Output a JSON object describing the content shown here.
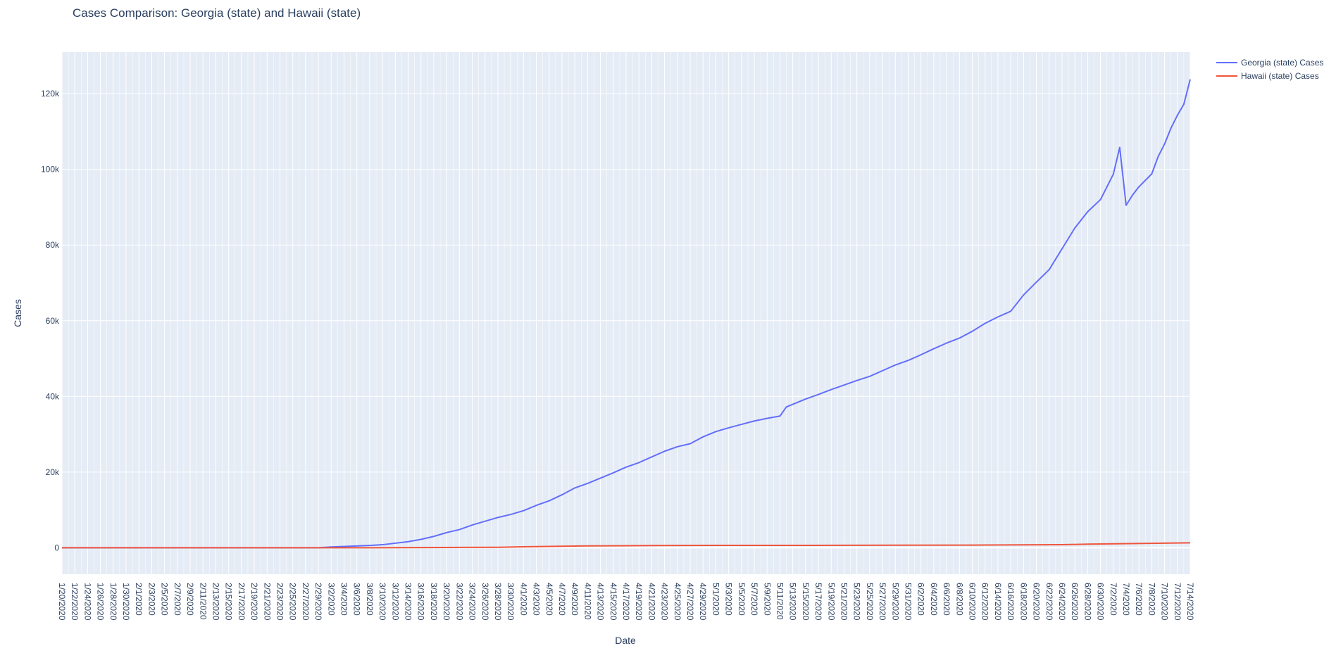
{
  "chart_data": {
    "type": "line",
    "title": "Cases Comparison: Georgia (state) and Hawaii (state)",
    "xlabel": "Date",
    "ylabel": "Cases",
    "x_range": [
      "1/20/2020",
      "7/14/2020"
    ],
    "ylim": [
      -7000,
      131000
    ],
    "y_ticks": [
      0,
      20000,
      40000,
      60000,
      80000,
      100000,
      120000
    ],
    "y_tick_labels": [
      "0",
      "20k",
      "40k",
      "60k",
      "80k",
      "100k",
      "120k"
    ],
    "x_tick_labels": [
      "1/20/2020",
      "1/22/2020",
      "1/24/2020",
      "1/26/2020",
      "1/28/2020",
      "1/30/2020",
      "2/1/2020",
      "2/3/2020",
      "2/5/2020",
      "2/7/2020",
      "2/9/2020",
      "2/11/2020",
      "2/13/2020",
      "2/15/2020",
      "2/17/2020",
      "2/19/2020",
      "2/21/2020",
      "2/23/2020",
      "2/25/2020",
      "2/27/2020",
      "2/29/2020",
      "3/2/2020",
      "3/4/2020",
      "3/6/2020",
      "3/8/2020",
      "3/10/2020",
      "3/12/2020",
      "3/14/2020",
      "3/16/2020",
      "3/18/2020",
      "3/20/2020",
      "3/22/2020",
      "3/24/2020",
      "3/26/2020",
      "3/28/2020",
      "3/30/2020",
      "4/1/2020",
      "4/3/2020",
      "4/5/2020",
      "4/7/2020",
      "4/9/2020",
      "4/11/2020",
      "4/13/2020",
      "4/15/2020",
      "4/17/2020",
      "4/19/2020",
      "4/21/2020",
      "4/23/2020",
      "4/25/2020",
      "4/27/2020",
      "4/29/2020",
      "5/1/2020",
      "5/3/2020",
      "5/5/2020",
      "5/7/2020",
      "5/9/2020",
      "5/11/2020",
      "5/13/2020",
      "5/15/2020",
      "5/17/2020",
      "5/19/2020",
      "5/21/2020",
      "5/23/2020",
      "5/25/2020",
      "5/27/2020",
      "5/29/2020",
      "5/31/2020",
      "6/2/2020",
      "6/4/2020",
      "6/6/2020",
      "6/8/2020",
      "6/10/2020",
      "6/12/2020",
      "6/14/2020",
      "6/16/2020",
      "6/18/2020",
      "6/20/2020",
      "6/22/2020",
      "6/24/2020",
      "6/26/2020",
      "6/28/2020",
      "6/30/2020",
      "7/2/2020",
      "7/4/2020",
      "7/6/2020",
      "7/8/2020",
      "7/10/2020",
      "7/12/2020",
      "7/14/2020"
    ],
    "grid": true,
    "legend_position": "top-right",
    "series": [
      {
        "name": "Georgia (state) Cases",
        "color": "#636efa",
        "points": [
          [
            "1/20/2020",
            0
          ],
          [
            "2/29/2020",
            0
          ],
          [
            "3/2/2020",
            200
          ],
          [
            "3/8/2020",
            600
          ],
          [
            "3/10/2020",
            800
          ],
          [
            "3/14/2020",
            1600
          ],
          [
            "3/16/2020",
            2200
          ],
          [
            "3/18/2020",
            3000
          ],
          [
            "3/20/2020",
            4000
          ],
          [
            "3/22/2020",
            4800
          ],
          [
            "3/24/2020",
            6000
          ],
          [
            "3/26/2020",
            7000
          ],
          [
            "3/28/2020",
            8000
          ],
          [
            "3/30/2020",
            8800
          ],
          [
            "4/1/2020",
            9800
          ],
          [
            "4/3/2020",
            11200
          ],
          [
            "4/5/2020",
            12400
          ],
          [
            "4/7/2020",
            14000
          ],
          [
            "4/9/2020",
            15800
          ],
          [
            "4/11/2020",
            17000
          ],
          [
            "4/13/2020",
            18400
          ],
          [
            "4/15/2020",
            19800
          ],
          [
            "4/17/2020",
            21300
          ],
          [
            "4/19/2020",
            22500
          ],
          [
            "4/21/2020",
            24000
          ],
          [
            "4/23/2020",
            25500
          ],
          [
            "4/25/2020",
            26700
          ],
          [
            "4/27/2020",
            27500
          ],
          [
            "4/29/2020",
            29300
          ],
          [
            "5/1/2020",
            30700
          ],
          [
            "5/3/2020",
            31700
          ],
          [
            "5/5/2020",
            32600
          ],
          [
            "5/7/2020",
            33500
          ],
          [
            "5/9/2020",
            34200
          ],
          [
            "5/11/2020",
            34800
          ],
          [
            "5/12/2020",
            37200
          ],
          [
            "5/15/2020",
            39300
          ],
          [
            "5/17/2020",
            40500
          ],
          [
            "5/19/2020",
            41800
          ],
          [
            "5/21/2020",
            43000
          ],
          [
            "5/23/2020",
            44200
          ],
          [
            "5/25/2020",
            45300
          ],
          [
            "5/27/2020",
            46800
          ],
          [
            "5/29/2020",
            48300
          ],
          [
            "5/31/2020",
            49500
          ],
          [
            "6/2/2020",
            51000
          ],
          [
            "6/4/2020",
            52600
          ],
          [
            "6/6/2020",
            54100
          ],
          [
            "6/8/2020",
            55400
          ],
          [
            "6/10/2020",
            57200
          ],
          [
            "6/12/2020",
            59300
          ],
          [
            "6/14/2020",
            61000
          ],
          [
            "6/16/2020",
            62500
          ],
          [
            "6/18/2020",
            66800
          ],
          [
            "6/20/2020",
            70200
          ],
          [
            "6/22/2020",
            73500
          ],
          [
            "6/24/2020",
            79000
          ],
          [
            "6/26/2020",
            84500
          ],
          [
            "6/28/2020",
            88800
          ],
          [
            "6/30/2020",
            92000
          ],
          [
            "7/2/2020",
            98700
          ],
          [
            "7/3/2020",
            105800
          ],
          [
            "7/4/2020",
            90500
          ],
          [
            "7/5/2020",
            93200
          ],
          [
            "7/6/2020",
            95400
          ],
          [
            "7/8/2020",
            98800
          ],
          [
            "7/9/2020",
            103400
          ],
          [
            "7/10/2020",
            106700
          ],
          [
            "7/11/2020",
            110900
          ],
          [
            "7/12/2020",
            114300
          ],
          [
            "7/13/2020",
            117200
          ],
          [
            "7/14/2020",
            123800
          ]
        ]
      },
      {
        "name": "Hawaii (state) Cases",
        "color": "#ef553b",
        "points": [
          [
            "1/20/2020",
            0
          ],
          [
            "3/8/2020",
            0
          ],
          [
            "3/22/2020",
            80
          ],
          [
            "3/28/2020",
            120
          ],
          [
            "4/1/2020",
            250
          ],
          [
            "4/11/2020",
            480
          ],
          [
            "4/21/2020",
            580
          ],
          [
            "5/1/2020",
            620
          ],
          [
            "5/21/2020",
            640
          ],
          [
            "6/10/2020",
            700
          ],
          [
            "6/24/2020",
            800
          ],
          [
            "6/28/2020",
            950
          ],
          [
            "7/14/2020",
            1300
          ]
        ]
      }
    ]
  }
}
